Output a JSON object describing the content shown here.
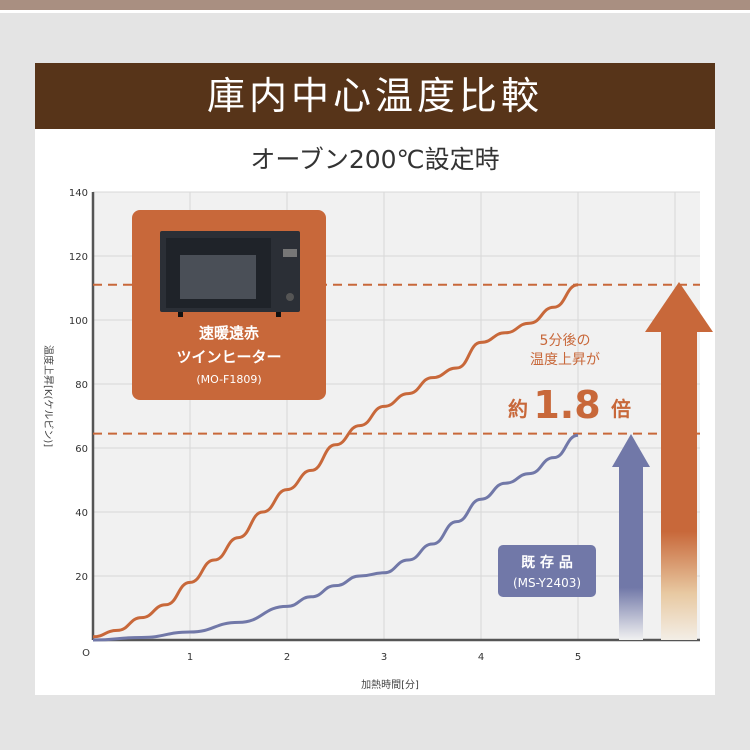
{
  "header": {
    "title": "庫内中心温度比較"
  },
  "subtitle": "オーブン200℃設定時",
  "colors": {
    "accent_orange": "#c8683a",
    "accent_blue": "#7178a8",
    "header_brown": "#573419"
  },
  "chart_data": {
    "type": "line",
    "xlabel": "加熱時間[分]",
    "ylabel": "温度上昇[K(ケルビン)]",
    "xlim": [
      0,
      6.2
    ],
    "ylim": [
      0,
      140
    ],
    "xticks": [
      "O",
      "1",
      "2",
      "3",
      "4",
      "5"
    ],
    "yticks": [
      "140",
      "120",
      "100",
      "80",
      "60",
      "40",
      "20"
    ],
    "grid": true,
    "series": [
      {
        "name": "速暖遠赤ツインヒーター (MO-F1809)",
        "color": "#c8683a",
        "x": [
          0,
          0.25,
          0.5,
          0.75,
          1,
          1.25,
          1.5,
          1.75,
          2,
          2.25,
          2.5,
          2.75,
          3,
          3.25,
          3.5,
          3.75,
          4,
          4.25,
          4.5,
          4.75,
          5
        ],
        "y": [
          1,
          3,
          7,
          11,
          18,
          25,
          32,
          40,
          47,
          53,
          61,
          67,
          73,
          77,
          82,
          85,
          93,
          96,
          99,
          104,
          111
        ]
      },
      {
        "name": "既存品 (MS-Y2403)",
        "color": "#7178a8",
        "x": [
          0,
          0.5,
          1,
          1.5,
          2,
          2.25,
          2.5,
          2.75,
          3,
          3.25,
          3.5,
          3.75,
          4,
          4.25,
          4.5,
          4.75,
          5
        ],
        "y": [
          0,
          0.8,
          2.5,
          5.5,
          10.5,
          13.5,
          17,
          20,
          21,
          25,
          30,
          37,
          44,
          49,
          52,
          57,
          64
        ]
      }
    ],
    "reference_lines": [
      111,
      64.5
    ],
    "annotations": {
      "product_new": {
        "line1": "速暖遠赤",
        "line2": "ツインヒーター",
        "model": "(MO-F1809)"
      },
      "product_old": {
        "line1": "既 存 品",
        "model": "(MS-Y2403)"
      },
      "ratio": {
        "line1": "5分後の",
        "line2": "温度上昇が",
        "prefix": "約",
        "value": "1.8",
        "suffix": "倍"
      }
    }
  }
}
